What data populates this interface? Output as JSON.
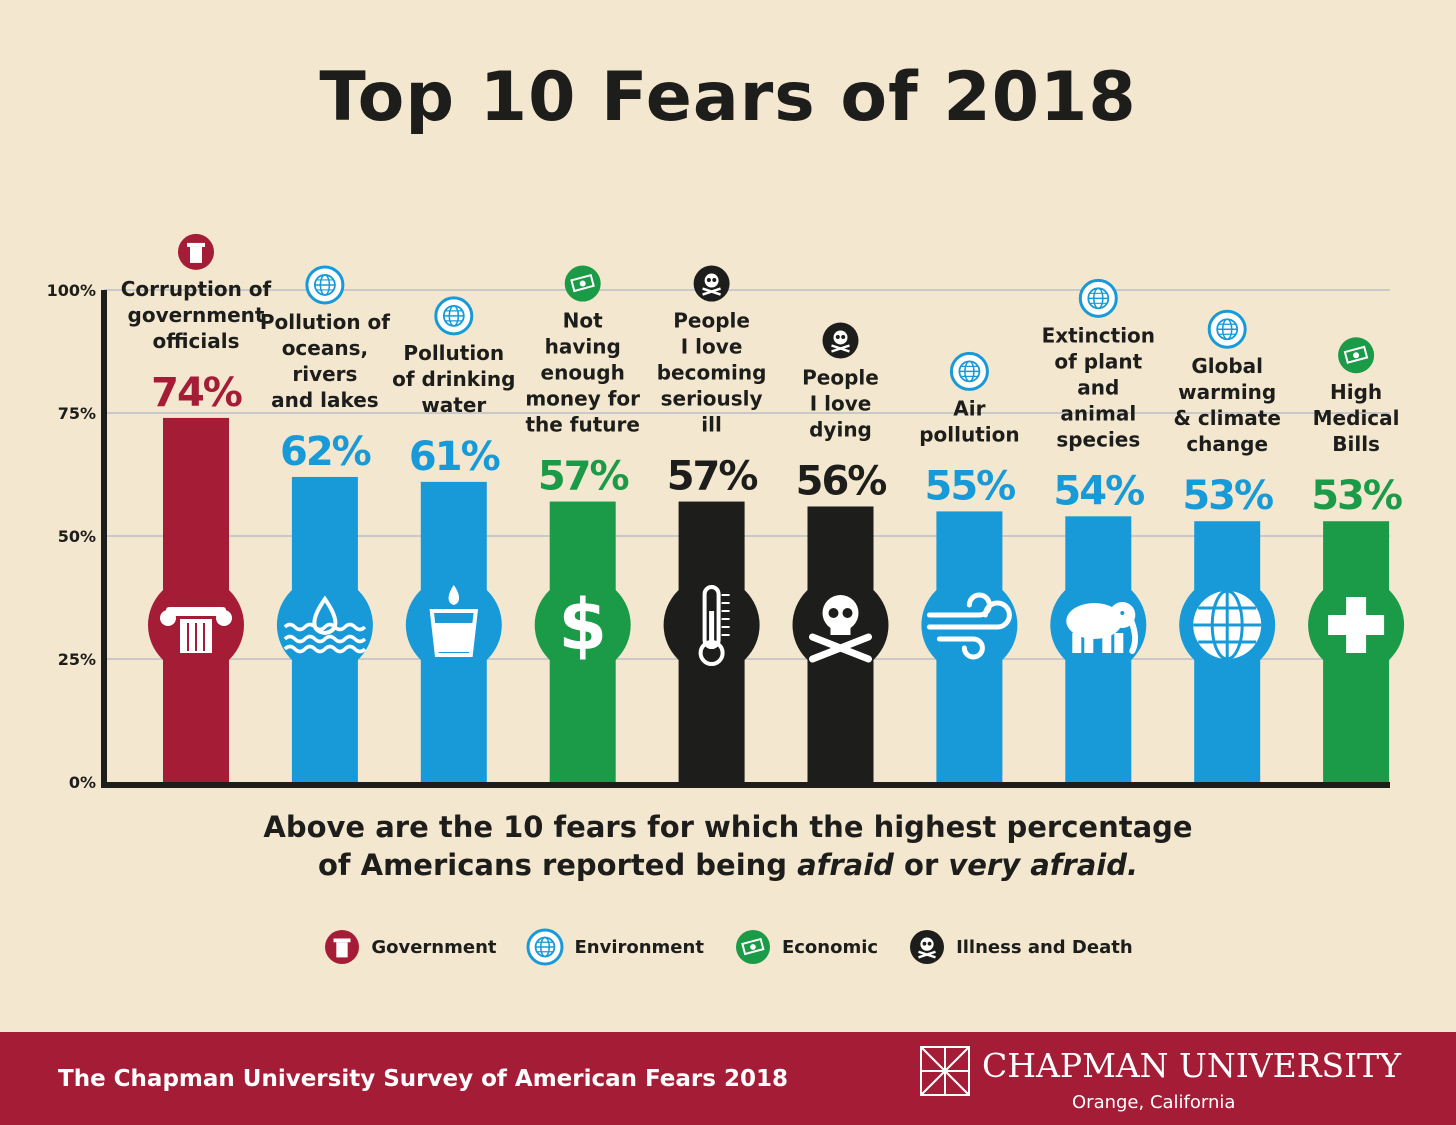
{
  "title": "Top 10 Fears of 2018",
  "subtitle_line1": "Above are the 10 fears for which the highest percentage",
  "subtitle_line2_a": "of Americans reported being ",
  "subtitle_line2_b": "afraid",
  "subtitle_line2_c": " or ",
  "subtitle_line2_d": "very afraid.",
  "colors": {
    "background": "#f3e8cf",
    "Government": "#a51c36",
    "Environment": "#189ad8",
    "Economic": "#1b9a47",
    "Illness and Death": "#1d1d1b",
    "grid": "#c9c9c9",
    "axis": "#1d1d1b"
  },
  "legend": [
    {
      "label": "Government",
      "icon": "column-icon"
    },
    {
      "label": "Environment",
      "icon": "globe-icon"
    },
    {
      "label": "Economic",
      "icon": "money-icon"
    },
    {
      "label": "Illness and Death",
      "icon": "skull-icon"
    }
  ],
  "chart_data": {
    "type": "bar",
    "ylim": [
      0,
      100
    ],
    "yticks": [
      "0%",
      "25%",
      "50%",
      "75%",
      "100%"
    ],
    "grid": true,
    "categories": [
      "Corruption of government officials",
      "Pollution of oceans, rivers and lakes",
      "Pollution of drinking water",
      "Not having enough money for the future",
      "People I love becoming seriously ill",
      "People I love dying",
      "Air pollution",
      "Extinction of plant and animal species",
      "Global warming & climate change",
      "High Medical Bills"
    ],
    "label_lines": [
      [
        "Corruption of",
        "government",
        "officials"
      ],
      [
        "Pollution of",
        "oceans,",
        "rivers",
        "and lakes"
      ],
      [
        "Pollution",
        "of drinking",
        "water"
      ],
      [
        "Not",
        "having",
        "enough",
        "money for",
        "the future"
      ],
      [
        "People",
        "I love",
        "becoming",
        "seriously",
        "ill"
      ],
      [
        "People",
        "I love",
        "dying"
      ],
      [
        "Air",
        "pollution"
      ],
      [
        "Extinction",
        "of plant",
        "and",
        "animal",
        "species"
      ],
      [
        "Global",
        "warming",
        "& climate",
        "change"
      ],
      [
        "High",
        "Medical",
        "Bills"
      ]
    ],
    "values": [
      74,
      62,
      61,
      57,
      57,
      56,
      55,
      54,
      53,
      53
    ],
    "value_labels": [
      "74%",
      "62%",
      "61%",
      "57%",
      "57%",
      "56%",
      "55%",
      "54%",
      "53%",
      "53%"
    ],
    "categories_group": [
      "Government",
      "Environment",
      "Environment",
      "Economic",
      "Illness and Death",
      "Illness and Death",
      "Environment",
      "Environment",
      "Environment",
      "Economic"
    ],
    "bar_icons": [
      "column-icon",
      "water-drop-icon",
      "water-glass-icon",
      "dollar-icon",
      "thermometer-icon",
      "skull-crossbones-icon",
      "wind-icon",
      "elephant-icon",
      "globe-icon",
      "medical-cross-icon"
    ]
  },
  "footer": {
    "survey": "The Chapman University Survey of American Fears 2018",
    "university": "CHAPMAN UNIVERSITY",
    "location": "Orange, California"
  }
}
